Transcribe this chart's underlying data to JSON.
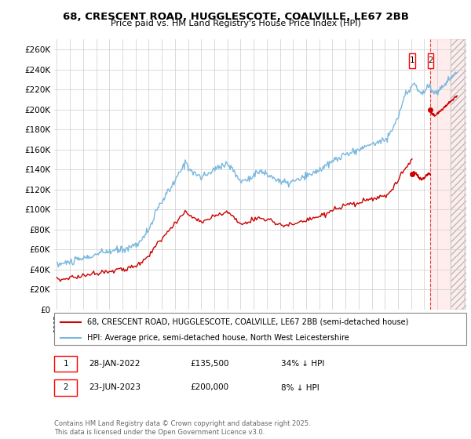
{
  "title_line1": "68, CRESCENT ROAD, HUGGLESCOTE, COALVILLE, LE67 2BB",
  "title_line2": "Price paid vs. HM Land Registry's House Price Index (HPI)",
  "ylim": [
    0,
    270000
  ],
  "yticks": [
    0,
    20000,
    40000,
    60000,
    80000,
    100000,
    120000,
    140000,
    160000,
    180000,
    200000,
    220000,
    240000,
    260000
  ],
  "ytick_labels": [
    "£0",
    "£20K",
    "£40K",
    "£60K",
    "£80K",
    "£100K",
    "£120K",
    "£140K",
    "£160K",
    "£180K",
    "£200K",
    "£220K",
    "£240K",
    "£260K"
  ],
  "hpi_color": "#7ab8e0",
  "price_color": "#cc0000",
  "legend_label_price": "68, CRESCENT ROAD, HUGGLESCOTE, COALVILLE, LE67 2BB (semi-detached house)",
  "legend_label_hpi": "HPI: Average price, semi-detached house, North West Leicestershire",
  "sale1_date": "28-JAN-2022",
  "sale1_price": "£135,500",
  "sale1_hpi": "34% ↓ HPI",
  "sale2_date": "23-JUN-2023",
  "sale2_price": "£200,000",
  "sale2_hpi": "8% ↓ HPI",
  "footer": "Contains HM Land Registry data © Crown copyright and database right 2025.\nThis data is licensed under the Open Government Licence v3.0.",
  "background_color": "#ffffff",
  "grid_color": "#cccccc",
  "xlim_start": 1994.8,
  "xlim_end": 2026.2,
  "t_sale1": 2022.07,
  "t_sale2": 2023.47,
  "sale1_value": 135500,
  "sale2_value": 200000,
  "hatch_start": 2025.0
}
